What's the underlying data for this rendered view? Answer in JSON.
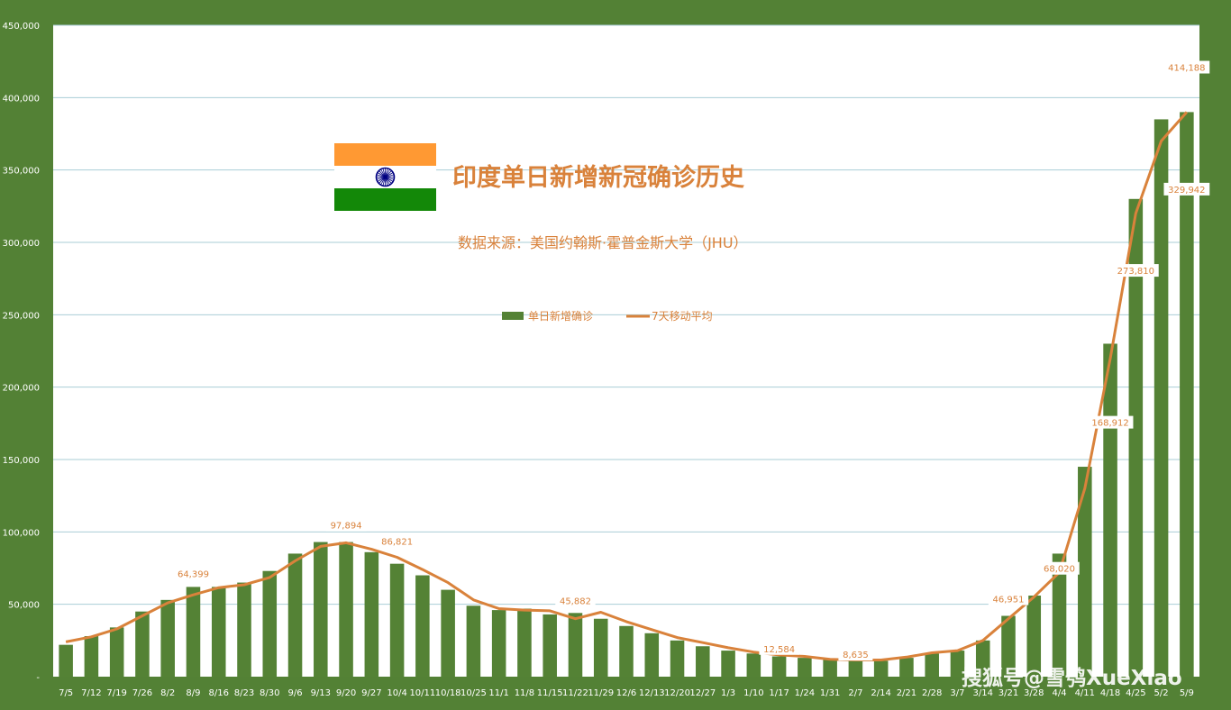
{
  "chart_data": {
    "type": "bar",
    "title": "印度单日新增新冠确诊历史",
    "subtitle": "数据来源：美国约翰斯·霍普金斯大学（JHU）",
    "ylim": [
      0,
      450000
    ],
    "y_ticks": [
      {
        "value": 0,
        "label": "-"
      },
      {
        "value": 50000,
        "label": "50,000"
      },
      {
        "value": 100000,
        "label": "100,000"
      },
      {
        "value": 150000,
        "label": "150,000"
      },
      {
        "value": 200000,
        "label": "200,000"
      },
      {
        "value": 250000,
        "label": "250,000"
      },
      {
        "value": 300000,
        "label": "300,000"
      },
      {
        "value": 350000,
        "label": "350,000"
      },
      {
        "value": 400000,
        "label": "400,000"
      },
      {
        "value": 450000,
        "label": "450,000"
      }
    ],
    "grid": true,
    "legend_position": "top-center",
    "categories": [
      "7/5",
      "7/12",
      "7/19",
      "7/26",
      "8/2",
      "8/9",
      "8/16",
      "8/23",
      "8/30",
      "9/6",
      "9/13",
      "9/20",
      "9/27",
      "10/4",
      "10/11",
      "10/18",
      "10/25",
      "11/1",
      "11/8",
      "11/15",
      "11/22",
      "11/29",
      "12/6",
      "12/13",
      "12/20",
      "12/27",
      "1/3",
      "1/10",
      "1/17",
      "1/24",
      "1/31",
      "2/7",
      "2/14",
      "2/21",
      "2/28",
      "3/7",
      "3/14",
      "3/21",
      "3/28",
      "4/4",
      "4/11",
      "4/18",
      "4/25",
      "5/2",
      "5/9"
    ],
    "series": [
      {
        "name": "单日新增确诊",
        "type": "bar",
        "color": "#548235",
        "values": [
          22000,
          28000,
          34000,
          45000,
          53000,
          62000,
          62000,
          65000,
          73000,
          85000,
          93000,
          93000,
          86000,
          78000,
          70000,
          60000,
          49000,
          46000,
          47000,
          43000,
          44000,
          40000,
          35000,
          30000,
          25000,
          21000,
          18000,
          16000,
          14000,
          13000,
          12000,
          11000,
          11000,
          13000,
          16000,
          18000,
          25000,
          42000,
          56000,
          85000,
          145000,
          230000,
          330000,
          385000,
          390000
        ]
      },
      {
        "name": "7天移动平均",
        "type": "line",
        "color": "#d9823b",
        "values": [
          24000,
          27500,
          33000,
          42000,
          51000,
          56500,
          61500,
          63500,
          68500,
          80000,
          90000,
          92500,
          88000,
          82500,
          74000,
          65000,
          53000,
          47000,
          46000,
          45500,
          40000,
          44500,
          38000,
          32500,
          27000,
          23500,
          20000,
          17000,
          15000,
          14000,
          12000,
          11500,
          11500,
          13500,
          16500,
          18000,
          25000,
          40000,
          55000,
          72000,
          130000,
          220000,
          320000,
          370000,
          390000
        ]
      }
    ],
    "annotations": [
      {
        "label": "64,399",
        "category": "8/9",
        "value": 64399
      },
      {
        "label": "97,894",
        "category": "9/20",
        "value": 97894
      },
      {
        "label": "86,821",
        "category": "10/4",
        "value": 86821
      },
      {
        "label": "45,882",
        "category": "11/22",
        "value": 45882
      },
      {
        "label": "12,584",
        "category": "1/17",
        "value": 12584
      },
      {
        "label": "8,635",
        "category": "2/7",
        "value": 8635
      },
      {
        "label": "46,951",
        "category": "3/21",
        "value": 46951
      },
      {
        "label": "68,020",
        "category": "4/4",
        "value": 68020
      },
      {
        "label": "168,912",
        "category": "4/18",
        "value": 168912
      },
      {
        "label": "273,810",
        "category": "4/25",
        "value": 273810
      },
      {
        "label": "414,188",
        "category": "5/9",
        "value": 414188
      },
      {
        "label": "329,942",
        "category": "5/9",
        "value": 329942
      }
    ]
  },
  "flag_colors": {
    "saffron": "#ff9933",
    "white": "#ffffff",
    "green": "#138808",
    "wheel": "#000080"
  },
  "watermark": "搜狐号@雪鸮XueXiao"
}
